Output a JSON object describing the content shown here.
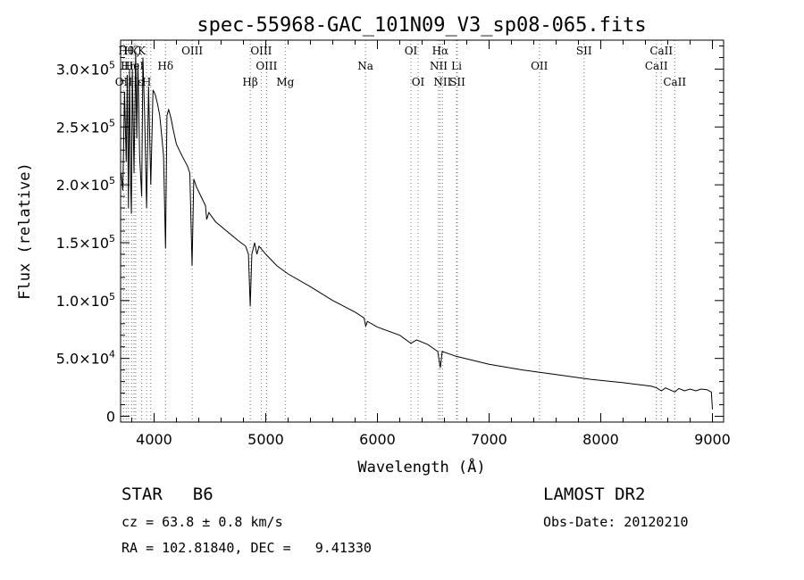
{
  "chart_data": {
    "type": "line",
    "title": "spec-55968-GAC_101N09_V3_sp08-065.fits",
    "xlabel": "Wavelength (Å)",
    "ylabel": "Flux (relative)",
    "xlim": [
      3700,
      9100
    ],
    "ylim": [
      -5000,
      325000
    ],
    "x_ticks": [
      4000,
      5000,
      6000,
      7000,
      8000,
      9000
    ],
    "y_ticks": [
      {
        "value": 0,
        "label": "0",
        "exp": ""
      },
      {
        "value": 50000,
        "label": "5.0×10",
        "exp": "4"
      },
      {
        "value": 100000,
        "label": "1.0×10",
        "exp": "5"
      },
      {
        "value": 150000,
        "label": "1.5×10",
        "exp": "5"
      },
      {
        "value": 200000,
        "label": "2.0×10",
        "exp": "5"
      },
      {
        "value": 250000,
        "label": "2.5×10",
        "exp": "5"
      },
      {
        "value": 300000,
        "label": "3.0×10",
        "exp": "5"
      }
    ],
    "series": [
      {
        "x": [
          3705,
          3720,
          3735,
          3750,
          3760,
          3770,
          3780,
          3790,
          3797,
          3805,
          3820,
          3835,
          3845,
          3855,
          3870,
          3889,
          3900,
          3915,
          3933,
          3950,
          3970,
          3990,
          4010,
          4030,
          4050,
          4070,
          4085,
          4102,
          4115,
          4130,
          4150,
          4170,
          4200,
          4250,
          4300,
          4320,
          4340,
          4355,
          4380,
          4420,
          4460,
          4471,
          4490,
          4550,
          4650,
          4750,
          4820,
          4845,
          4861,
          4875,
          4900,
          4921,
          4940,
          5000,
          5100,
          5200,
          5400,
          5600,
          5800,
          5880,
          5895,
          5910,
          6000,
          6200,
          6300,
          6350,
          6450,
          6540,
          6563,
          6580,
          6700,
          7000,
          7300,
          7600,
          7900,
          8200,
          8450,
          8500,
          8542,
          8580,
          8662,
          8700,
          8750,
          8800,
          8850,
          8900,
          8950,
          8990,
          9000
        ],
        "y": [
          210000,
          195000,
          280000,
          220000,
          295000,
          180000,
          300000,
          200000,
          175000,
          300000,
          210000,
          315000,
          240000,
          305000,
          225000,
          190000,
          310000,
          260000,
          180000,
          285000,
          200000,
          282000,
          278000,
          270000,
          260000,
          240000,
          225000,
          145000,
          260000,
          265000,
          258000,
          248000,
          235000,
          225000,
          216000,
          210000,
          130000,
          205000,
          198000,
          190000,
          182000,
          170000,
          176000,
          168000,
          160000,
          152000,
          147000,
          140000,
          95000,
          140000,
          150000,
          140000,
          147000,
          140000,
          130000,
          123000,
          112000,
          100000,
          90000,
          85000,
          78000,
          82000,
          77000,
          70000,
          63000,
          66000,
          62000,
          56000,
          42000,
          56000,
          52000,
          45000,
          40000,
          36000,
          32000,
          29000,
          26000,
          24500,
          22000,
          24500,
          21000,
          24000,
          22000,
          23500,
          22000,
          23500,
          23000,
          21000,
          6000
        ]
      }
    ],
    "line_markers": [
      {
        "wl": 3727,
        "label": "OII",
        "row": 2
      },
      {
        "wl": 3750,
        "label": "Hθ",
        "row": 0
      },
      {
        "wl": 3771,
        "label": "Hη",
        "row": 1
      },
      {
        "wl": 3798,
        "label": "Hζ",
        "row": 0
      },
      {
        "wl": 3820,
        "label": "HeI",
        "row": 1
      },
      {
        "wl": 3835,
        "label": "Hε",
        "row": 2
      },
      {
        "wl": 3889,
        "label": "K",
        "row": 0
      },
      {
        "wl": 3933,
        "label": "H",
        "row": 2
      },
      {
        "wl": 3970,
        "label": "",
        "row": 0
      },
      {
        "wl": 4102,
        "label": "Hδ",
        "row": 1
      },
      {
        "wl": 4341,
        "label": "OIII",
        "row": 0
      },
      {
        "wl": 4861,
        "label": "Hβ",
        "row": 2
      },
      {
        "wl": 4959,
        "label": "OIII",
        "row": 0
      },
      {
        "wl": 5007,
        "label": "OIII",
        "row": 1
      },
      {
        "wl": 5175,
        "label": "Mg",
        "row": 2
      },
      {
        "wl": 5893,
        "label": "Na",
        "row": 1
      },
      {
        "wl": 6300,
        "label": "OI",
        "row": 0
      },
      {
        "wl": 6364,
        "label": "OI",
        "row": 2
      },
      {
        "wl": 6548,
        "label": "NII",
        "row": 1
      },
      {
        "wl": 6563,
        "label": "Hα",
        "row": 0
      },
      {
        "wl": 6583,
        "label": "NII",
        "row": 2
      },
      {
        "wl": 6708,
        "label": "Li",
        "row": 1
      },
      {
        "wl": 6716,
        "label": "SII",
        "row": 2
      },
      {
        "wl": 7450,
        "label": "OII",
        "row": 1
      },
      {
        "wl": 7850,
        "label": "SII",
        "row": 0
      },
      {
        "wl": 8498,
        "label": "CaII",
        "row": 1
      },
      {
        "wl": 8542,
        "label": "CaII",
        "row": 0
      },
      {
        "wl": 8662,
        "label": "CaII",
        "row": 2
      }
    ]
  },
  "info": {
    "object_class": "STAR",
    "subclass": "B6",
    "survey": "LAMOST DR2",
    "redshift": "cz = 63.8 ± 0.8 km/s",
    "obs_date": "Obs-Date: 20120210",
    "coords": "RA = 102.81840, DEC =   9.41330"
  },
  "colors": {
    "line": "#000000",
    "background": "#ffffff",
    "marker": "#777777"
  }
}
